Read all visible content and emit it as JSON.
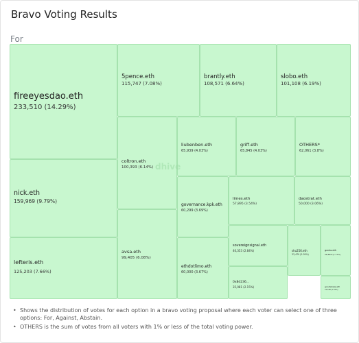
{
  "title": "Bravo Voting Results",
  "option": "For",
  "watermark": "dhive",
  "notes": [
    "Shows the distribution of votes for each option in a bravo voting proposal where each voter can select one of three options: For, Against, Abstain.",
    "OTHERS is the sum of votes from all voters with 1% or less of the total voting power."
  ],
  "chart_data": {
    "type": "treemap",
    "title": "Bravo Voting Results",
    "items": [
      {
        "name": "fireeyesdao.eth",
        "votes": 233510,
        "label": "233,510 (14.29%)"
      },
      {
        "name": "nick.eth",
        "votes": 159969,
        "label": "159,969 (9.79%)"
      },
      {
        "name": "lefteris.eth",
        "votes": 125203,
        "label": "125,203 (7.66%)"
      },
      {
        "name": "5pence.eth",
        "votes": 115747,
        "label": "115,747 (7.08%)"
      },
      {
        "name": "brantly.eth",
        "votes": 108571,
        "label": "108,571 (6.64%)"
      },
      {
        "name": "slobo.eth",
        "votes": 101108,
        "label": "101,108 (6.19%)"
      },
      {
        "name": "coltron.eth",
        "votes": 100393,
        "label": "100,393 (6.14%)"
      },
      {
        "name": "avsa.eth",
        "votes": 99405,
        "label": "99,405 (6.08%)"
      },
      {
        "name": "liubenben.eth",
        "votes": 65939,
        "label": "65,939 (4.03%)"
      },
      {
        "name": "griff.eth",
        "votes": 65845,
        "label": "65,845 (4.03%)"
      },
      {
        "name": "OTHERS*",
        "votes": 62061,
        "label": "62,061 (3.8%)"
      },
      {
        "name": "governance.kpk.eth",
        "votes": 60299,
        "label": "60,299 (3.69%)"
      },
      {
        "name": "ethdotlimo.eth",
        "votes": 60000,
        "label": "60,000 (3.67%)"
      },
      {
        "name": "limes.eth",
        "votes": 57895,
        "label": "57,895 (3.54%)"
      },
      {
        "name": "daostrat.eth",
        "votes": 50000,
        "label": "50,000 (3.06%)"
      },
      {
        "name": "sovereignsignal.eth",
        "votes": 46353,
        "label": "46,353 (2.84%)"
      },
      {
        "name": "0x8d236...",
        "votes": 35081,
        "label": "35,081 (2.15%)"
      },
      {
        "name": "shu256.eth",
        "votes": 33479,
        "label": "33,479 (2.05%)"
      },
      {
        "name": "gecko.eth",
        "votes": 28894,
        "label": "28,894 (1.77%)"
      },
      {
        "name": "goodwhale.eth",
        "votes": 21538,
        "label": "21,538 (1.32%)"
      }
    ]
  }
}
